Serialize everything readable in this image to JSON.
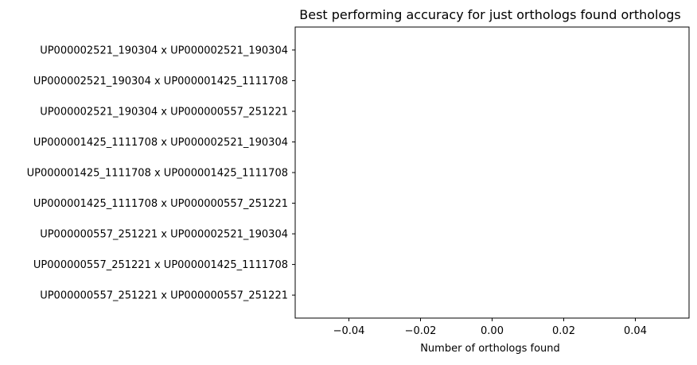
{
  "chart_data": {
    "type": "bar",
    "orientation": "horizontal",
    "title": "Best performing accuracy for just orthologs found orthologs",
    "xlabel": "Number of orthologs found",
    "ylabel": "",
    "categories": [
      "UP000002521_190304 x UP000002521_190304",
      "UP000002521_190304 x UP000001425_1111708",
      "UP000002521_190304 x UP000000557_251221",
      "UP000001425_1111708 x UP000002521_190304",
      "UP000001425_1111708 x UP000001425_1111708",
      "UP000001425_1111708 x UP000000557_251221",
      "UP000000557_251221 x UP000002521_190304",
      "UP000000557_251221 x UP000001425_1111708",
      "UP000000557_251221 x UP000000557_251221"
    ],
    "values": [
      0,
      0,
      0,
      0,
      0,
      0,
      0,
      0,
      0
    ],
    "xlim": [
      -0.055,
      0.055
    ],
    "xticks": [
      -0.04,
      -0.02,
      0.0,
      0.02,
      0.04
    ],
    "xtick_labels": [
      "−0.04",
      "−0.02",
      "0.00",
      "0.02",
      "0.04"
    ],
    "grid": false,
    "legend": "none"
  }
}
